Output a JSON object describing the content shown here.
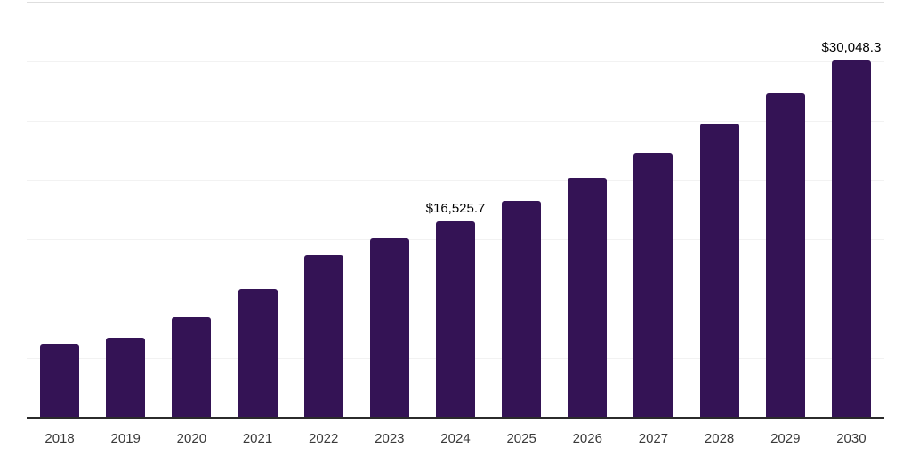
{
  "chart_data": {
    "type": "bar",
    "title": "",
    "xlabel": "",
    "ylabel": "",
    "categories": [
      "2018",
      "2019",
      "2020",
      "2021",
      "2022",
      "2023",
      "2024",
      "2025",
      "2026",
      "2027",
      "2028",
      "2029",
      "2030"
    ],
    "values": [
      6200,
      6750,
      8450,
      10870,
      13690,
      15110,
      16525.7,
      18270,
      20200,
      22300,
      24750,
      27300,
      30048.3
    ],
    "data_labels": [
      null,
      null,
      null,
      null,
      null,
      null,
      "$16,525.7",
      null,
      null,
      null,
      null,
      null,
      "$30,048.3"
    ],
    "ylim": [
      0,
      35000
    ],
    "gridline_step": 5000,
    "grid": true,
    "legend": false,
    "y_axis_tick_labels_visible": false,
    "colors": {
      "bar": "#341355",
      "axis_line": "#2b2b2b",
      "gridline": "#f2f2f2",
      "top_gridline": "#dedede",
      "x_label_text": "#3a3a3a",
      "data_label_text": "#000000",
      "background": "#ffffff"
    }
  }
}
